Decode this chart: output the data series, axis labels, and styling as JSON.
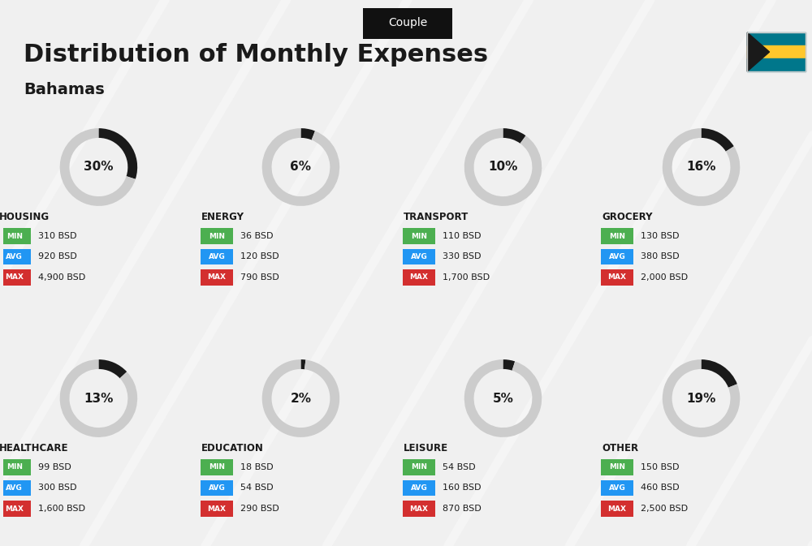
{
  "title": "Distribution of Monthly Expenses",
  "subtitle": "Bahamas",
  "tag": "Couple",
  "bg_color": "#f0f0f0",
  "categories": [
    {
      "name": "HOUSING",
      "pct": 30,
      "min": "310 BSD",
      "avg": "920 BSD",
      "max": "4,900 BSD",
      "col": 0,
      "row": 0,
      "icon_color": "#2196F3"
    },
    {
      "name": "ENERGY",
      "pct": 6,
      "min": "36 BSD",
      "avg": "120 BSD",
      "max": "790 BSD",
      "col": 1,
      "row": 0,
      "icon_color": "#FFC107"
    },
    {
      "name": "TRANSPORT",
      "pct": 10,
      "min": "110 BSD",
      "avg": "330 BSD",
      "max": "1,700 BSD",
      "col": 2,
      "row": 0,
      "icon_color": "#26C6DA"
    },
    {
      "name": "GROCERY",
      "pct": 16,
      "min": "130 BSD",
      "avg": "380 BSD",
      "max": "2,000 BSD",
      "col": 3,
      "row": 0,
      "icon_color": "#FF9800"
    },
    {
      "name": "HEALTHCARE",
      "pct": 13,
      "min": "99 BSD",
      "avg": "300 BSD",
      "max": "1,600 BSD",
      "col": 0,
      "row": 1,
      "icon_color": "#E91E63"
    },
    {
      "name": "EDUCATION",
      "pct": 2,
      "min": "18 BSD",
      "avg": "54 BSD",
      "max": "290 BSD",
      "col": 1,
      "row": 1,
      "icon_color": "#4CAF50"
    },
    {
      "name": "LEISURE",
      "pct": 5,
      "min": "54 BSD",
      "avg": "160 BSD",
      "max": "870 BSD",
      "col": 2,
      "row": 1,
      "icon_color": "#FF5722"
    },
    {
      "name": "OTHER",
      "pct": 19,
      "min": "150 BSD",
      "avg": "460 BSD",
      "max": "2,500 BSD",
      "col": 3,
      "row": 1,
      "icon_color": "#795548"
    }
  ],
  "min_color": "#4CAF50",
  "avg_color": "#2196F3",
  "max_color": "#D32F2F",
  "label_color": "#ffffff",
  "text_color": "#1a1a1a",
  "circle_color_used": "#1a1a1a",
  "circle_color_bg": "#cccccc"
}
